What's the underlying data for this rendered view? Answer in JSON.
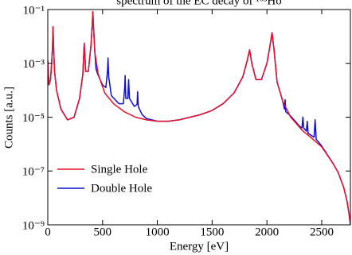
{
  "chart_data": {
    "type": "line",
    "title": "spectrum of the EC decay of ¹⁶³Ho",
    "xlabel": "Energy [eV]",
    "ylabel": "Counts [a.u.]",
    "xlim": [
      0,
      2762
    ],
    "xticks": [
      0,
      500,
      1000,
      1500,
      2000,
      2500
    ],
    "ylim": [
      1e-09,
      0.1
    ],
    "yticks": [
      {
        "value": 0.1,
        "label": "10⁻¹"
      },
      {
        "value": 0.001,
        "label": "10⁻³"
      },
      {
        "value": 1e-05,
        "label": "10⁻⁵"
      },
      {
        "value": 1e-07,
        "label": "10⁻⁷"
      },
      {
        "value": 1e-09,
        "label": "10⁻⁹"
      }
    ],
    "log_y": true,
    "legend": "lower left",
    "series": [
      {
        "name": "Double Hole",
        "color": "#1010d0",
        "x": [
          0,
          10,
          25,
          35,
          43,
          48,
          53,
          62,
          80,
          120,
          180,
          240,
          290,
          320,
          333,
          346,
          370,
          395,
          405,
          411,
          418,
          430,
          440,
          455,
          500,
          530,
          545,
          550,
          556,
          580,
          650,
          690,
          702,
          706,
          712,
          730,
          738,
          745,
          790,
          815,
          820,
          826,
          860,
          900,
          1000,
          1100,
          1200,
          1300,
          1400,
          1500,
          1600,
          1700,
          1780,
          1820,
          1842,
          1862,
          1900,
          1950,
          2000,
          2030,
          2047,
          2065,
          2093,
          2144,
          2160,
          2166,
          2172,
          2217,
          2300,
          2320,
          2328,
          2336,
          2360,
          2368,
          2376,
          2430,
          2440,
          2450,
          2500,
          2600,
          2650,
          2700,
          2730,
          2750,
          2762
        ],
        "values": [
          0.00126,
          0.000158,
          0.000251,
          0.001,
          0.00398,
          0.0229,
          0.00398,
          0.000501,
          0.0001,
          2e-05,
          7.94e-06,
          1e-05,
          5.01e-05,
          0.000398,
          0.00562,
          0.000501,
          0.000501,
          0.00501,
          0.0251,
          0.0832,
          0.02,
          0.00251,
          0.000631,
          0.0004,
          0.000158,
          0.000126,
          0.0005,
          0.00158,
          0.000316,
          6.31e-05,
          3.16e-05,
          3.16e-05,
          0.000126,
          0.000355,
          5e-05,
          5e-05,
          0.000251,
          5e-05,
          2.51e-05,
          3e-05,
          8.91e-05,
          2.5e-05,
          1.26e-05,
          8.91e-06,
          7.08e-06,
          7.08e-06,
          7.94e-06,
          1e-05,
          1.26e-05,
          1.78e-05,
          3.16e-05,
          7.94e-05,
          0.000316,
          0.00126,
          0.00316,
          0.001,
          0.000251,
          0.000251,
          0.001,
          0.00501,
          0.0138,
          0.00316,
          0.0002,
          3.98e-05,
          2e-05,
          4.47e-05,
          1.6e-05,
          1.1e-05,
          4.5e-06,
          4e-06,
          1e-05,
          4e-06,
          3e-06,
          7e-06,
          2.5e-06,
          1.8e-06,
          8e-06,
          1.5e-06,
          8.5e-07,
          2e-07,
          8.91e-08,
          2.51e-08,
          7.94e-09,
          2.51e-09,
          1e-09
        ]
      },
      {
        "name": "Single Hole",
        "color": "#e8102a",
        "x": [
          0,
          10,
          25,
          35,
          43,
          48,
          53,
          62,
          80,
          120,
          180,
          240,
          290,
          320,
          333,
          346,
          370,
          395,
          405,
          411,
          418,
          430,
          460,
          520,
          600,
          700,
          800,
          900,
          1000,
          1100,
          1200,
          1300,
          1400,
          1500,
          1600,
          1700,
          1780,
          1820,
          1842,
          1862,
          1900,
          1950,
          2000,
          2030,
          2047,
          2065,
          2093,
          2144,
          2217,
          2325,
          2400,
          2500,
          2600,
          2650,
          2700,
          2730,
          2750,
          2762
        ],
        "values": [
          0.00126,
          0.000158,
          0.000251,
          0.001,
          0.00398,
          0.0229,
          0.00398,
          0.000501,
          0.0001,
          2e-05,
          7.94e-06,
          1e-05,
          5.01e-05,
          0.000398,
          0.00562,
          0.000501,
          0.000501,
          0.00501,
          0.0251,
          0.0832,
          0.02,
          0.00251,
          0.000398,
          7.94e-05,
          3.16e-05,
          1.58e-05,
          1e-05,
          7.94e-06,
          7.08e-06,
          7.08e-06,
          7.94e-06,
          1e-05,
          1.26e-05,
          1.78e-05,
          3.16e-05,
          7.94e-05,
          0.000316,
          0.00126,
          0.00316,
          0.001,
          0.000251,
          0.000251,
          0.001,
          0.00501,
          0.0138,
          0.00316,
          0.0002,
          3.98e-05,
          1e-05,
          3.16e-06,
          1.78e-06,
          7.94e-07,
          2e-07,
          8.91e-08,
          2.51e-08,
          7.94e-09,
          2.51e-09,
          1e-09
        ]
      }
    ]
  }
}
